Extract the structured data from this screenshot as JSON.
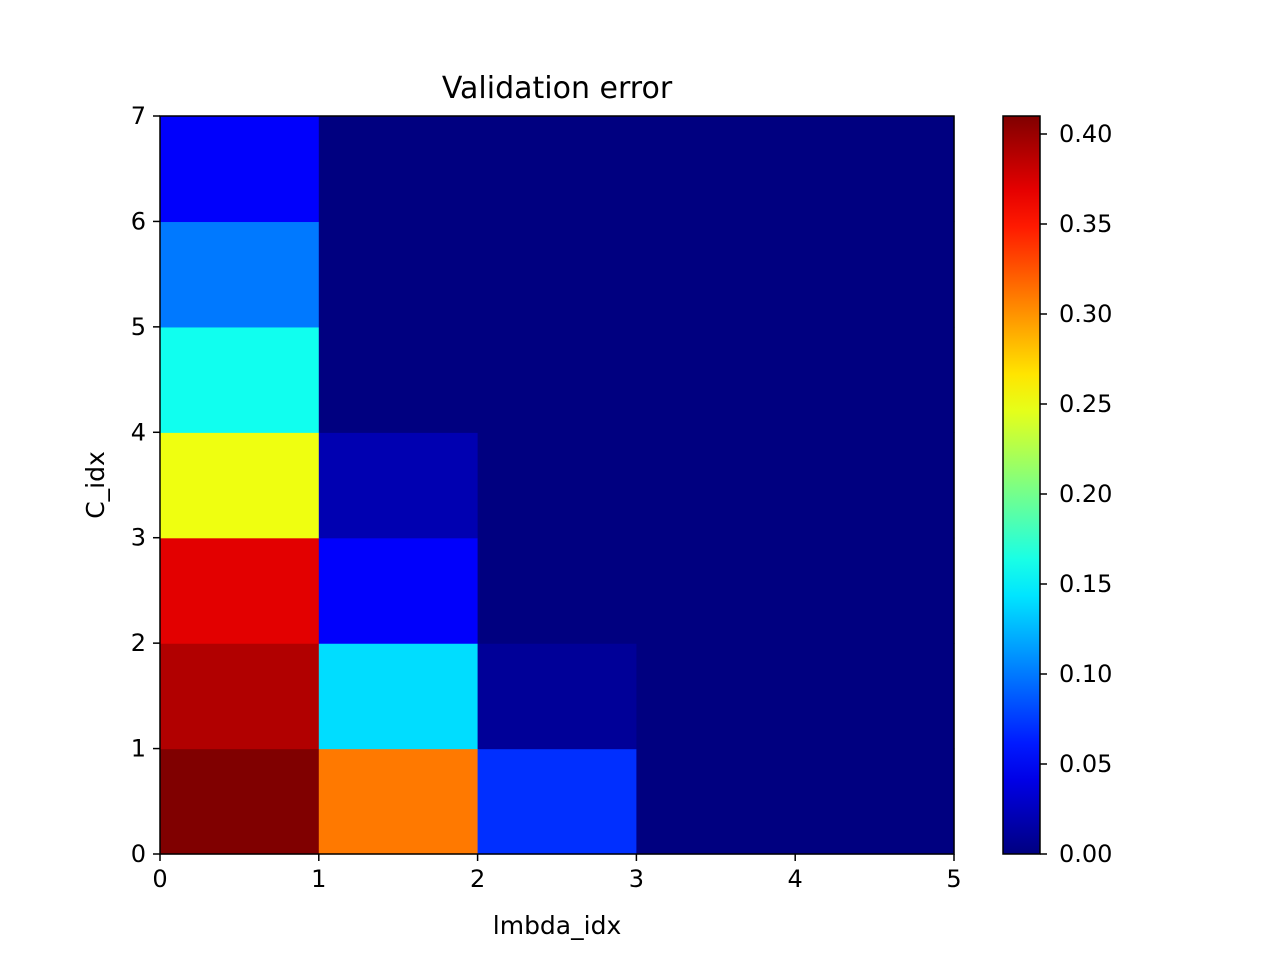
{
  "chart_data": {
    "type": "heatmap",
    "title": "Validation error",
    "xlabel": "lmbda_idx",
    "ylabel": "C_idx",
    "xlim": [
      0,
      5
    ],
    "ylim": [
      0,
      7
    ],
    "x_ticks": [
      "0",
      "1",
      "2",
      "3",
      "4",
      "5"
    ],
    "y_ticks": [
      "0",
      "1",
      "2",
      "3",
      "4",
      "5",
      "6",
      "7"
    ],
    "colormap": "jet",
    "colorbar": {
      "range": [
        0,
        0.41
      ],
      "ticks": [
        "0.00",
        "0.05",
        "0.10",
        "0.15",
        "0.20",
        "0.25",
        "0.30",
        "0.35",
        "0.40"
      ]
    },
    "rows_bottom_to_top": [
      [
        0.41,
        0.31,
        0.07,
        0.0,
        0.0
      ],
      [
        0.39,
        0.14,
        0.01,
        0.0,
        0.0
      ],
      [
        0.37,
        0.05,
        0.0,
        0.0,
        0.0
      ],
      [
        0.25,
        0.02,
        0.0,
        0.0,
        0.0
      ],
      [
        0.16,
        0.0,
        0.0,
        0.0,
        0.0
      ],
      [
        0.1,
        0.0,
        0.0,
        0.0,
        0.0
      ],
      [
        0.05,
        0.0,
        0.0,
        0.0,
        0.0
      ]
    ],
    "grid": false,
    "legend": "none"
  }
}
